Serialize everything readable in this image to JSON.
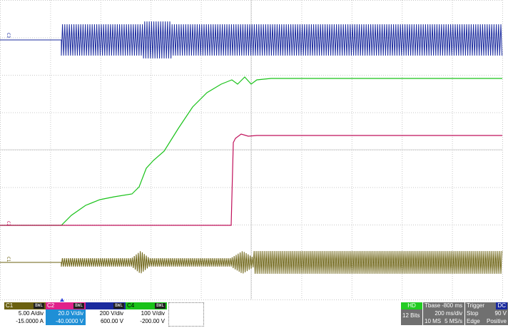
{
  "channels": [
    {
      "id": "C1",
      "scale": "5.00 A/div",
      "offset": "-15.0000 A",
      "color": "#6b6110",
      "badge": "BWL"
    },
    {
      "id": "C2",
      "scale": "20.0 V/div",
      "offset": "-40.0000 V",
      "color": "#c0105a",
      "badge": "BWL"
    },
    {
      "id": "C3",
      "scale": "200 V/div",
      "offset": "600.00 V",
      "color": "#1a2a9e",
      "badge": "BWL"
    },
    {
      "id": "C4",
      "scale": "100 V/div",
      "offset": "-200.00 V",
      "color": "#19c219",
      "badge": "BWL"
    }
  ],
  "hd": {
    "label": "HD",
    "bits": "12 Bits"
  },
  "timebase": {
    "label": "Tbase",
    "delay": "-800 ms",
    "per_div": "200 ms/div",
    "memory": "10 MS",
    "rate": "5 MS/s"
  },
  "trigger": {
    "label": "Trigger",
    "state": "Stop",
    "type": "Edge",
    "slope": "Positive",
    "level": "90 V",
    "badge": "DC"
  },
  "markers": {
    "c3": "C3",
    "c2": "C2",
    "c1": "C1"
  },
  "colors": {
    "grid": "#c8c8c8",
    "c1": "#6b6110",
    "c2": "#c0105a",
    "c3": "#1a2a9e",
    "c4": "#19c219"
  }
}
